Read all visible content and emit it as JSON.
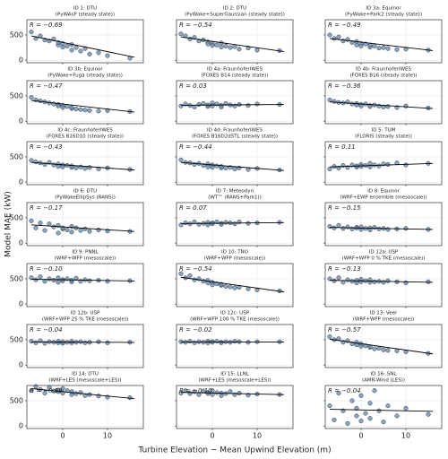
{
  "figure": {
    "xlabel": "Turbine Elevation − Mean Upwind Elevation (m)",
    "ylabel": "Model MAE (kW)",
    "xlim": [
      -8,
      18
    ],
    "ylim": [
      -50,
      800
    ],
    "xticks": [
      0,
      10
    ],
    "yticks": [
      0,
      500
    ],
    "grid": true,
    "x": [
      -7,
      -6,
      -5,
      -4,
      -3,
      -2,
      -1,
      -1,
      0,
      0,
      1,
      2,
      2,
      3,
      4,
      5,
      6,
      8,
      10,
      15
    ],
    "fit_x": [
      -7,
      16
    ],
    "color": "#6f8fb0"
  },
  "chart_data": [
    {
      "type": "scatter",
      "title": "ID 1: DTU",
      "subtitle": "(PyWAsP (steady state))",
      "annotation": "R = −0.69",
      "y": [
        560,
        430,
        480,
        400,
        380,
        420,
        300,
        350,
        260,
        330,
        280,
        200,
        310,
        250,
        180,
        230,
        120,
        150,
        90,
        40
      ],
      "fit": [
        480,
        60
      ]
    },
    {
      "type": "scatter",
      "title": "ID 2: DTU",
      "subtitle": "(PyWake+SuperGaussian (steady state))",
      "annotation": "R = −0.54",
      "y": [
        520,
        480,
        420,
        450,
        380,
        400,
        360,
        320,
        330,
        290,
        300,
        260,
        340,
        280,
        250,
        270,
        220,
        240,
        200,
        190
      ],
      "fit": [
        460,
        170
      ]
    },
    {
      "type": "scatter",
      "title": "ID 3a: Equinor",
      "subtitle": "(PyWake+Park2 (steady state))",
      "annotation": "R = −0.49",
      "y": [
        500,
        430,
        460,
        380,
        410,
        350,
        370,
        300,
        330,
        280,
        320,
        260,
        300,
        280,
        240,
        250,
        230,
        210,
        220,
        200
      ],
      "fit": [
        430,
        190
      ]
    },
    {
      "type": "scatter",
      "title": "ID 3b: Equinor",
      "subtitle": "(PyWake+Fuga (steady state))",
      "annotation": "R = −0.47",
      "y": [
        470,
        420,
        400,
        380,
        360,
        340,
        330,
        300,
        310,
        270,
        290,
        250,
        270,
        240,
        230,
        220,
        210,
        200,
        210,
        190
      ],
      "fit": [
        410,
        180
      ]
    },
    {
      "type": "scatter",
      "title": "ID 4a: FraunhoferIWES",
      "subtitle": "(FOXES B14 (steady state))",
      "annotation": "R = 0.03",
      "y": [
        300,
        340,
        310,
        280,
        330,
        350,
        290,
        320,
        360,
        300,
        340,
        310,
        280,
        350,
        320,
        300,
        330,
        310,
        340,
        330
      ],
      "fit": [
        315,
        330
      ]
    },
    {
      "type": "scatter",
      "title": "ID 4b: FraunhoferIWES",
      "subtitle": "(FOXES B16 (steady state))",
      "annotation": "R = −0.36",
      "y": [
        420,
        390,
        370,
        360,
        380,
        340,
        350,
        320,
        330,
        300,
        340,
        310,
        290,
        320,
        300,
        280,
        290,
        270,
        300,
        260
      ],
      "fit": [
        380,
        250
      ]
    },
    {
      "type": "scatter",
      "title": "ID 4c: FraunhoferIWES",
      "subtitle": "(FOXES B16D10 (steady state))",
      "annotation": "R = −0.43",
      "y": [
        430,
        400,
        380,
        350,
        390,
        340,
        360,
        310,
        340,
        300,
        330,
        290,
        320,
        280,
        300,
        270,
        290,
        260,
        280,
        250
      ],
      "fit": [
        390,
        240
      ]
    },
    {
      "type": "scatter",
      "title": "ID 4d: FraunhoferIWES",
      "subtitle": "(FOXES B16D2d5TL (steady state))",
      "annotation": "R = −0.44",
      "y": [
        440,
        390,
        380,
        350,
        370,
        330,
        360,
        300,
        340,
        290,
        320,
        280,
        310,
        280,
        290,
        260,
        280,
        250,
        270,
        240
      ],
      "fit": [
        390,
        230
      ]
    },
    {
      "type": "scatter",
      "title": "ID 5: TUM",
      "subtitle": "(FLORIS (steady state))",
      "annotation": "R = 0.11",
      "y": [
        260,
        310,
        280,
        330,
        290,
        340,
        300,
        320,
        350,
        310,
        330,
        300,
        370,
        340,
        320,
        360,
        350,
        380,
        340,
        370
      ],
      "fit": [
        300,
        370
      ]
    },
    {
      "type": "scatter",
      "title": "ID 6: DTU",
      "subtitle": "(PyWakeEllipSys (RANS))",
      "annotation": "R = −0.17",
      "y": [
        440,
        300,
        400,
        250,
        380,
        320,
        200,
        350,
        280,
        300,
        260,
        330,
        220,
        300,
        250,
        280,
        230,
        260,
        240,
        230
      ],
      "fit": [
        360,
        230
      ]
    },
    {
      "type": "scatter",
      "title": "ID 7: Meteodyn",
      "subtitle": "(WT™ (RANS+Park1))",
      "annotation": "R = 0.07",
      "y": [
        360,
        400,
        380,
        420,
        370,
        390,
        410,
        360,
        400,
        380,
        420,
        390,
        370,
        410,
        400,
        380,
        420,
        390,
        400,
        410
      ],
      "fit": [
        385,
        405
      ]
    },
    {
      "type": "scatter",
      "title": "ID 8: Equinor",
      "subtitle": "(WRF+EWP ensemble (mesoscale))",
      "annotation": "R = −0.15",
      "y": [
        330,
        300,
        350,
        290,
        320,
        280,
        310,
        300,
        270,
        320,
        290,
        300,
        260,
        310,
        280,
        290,
        270,
        280,
        290,
        270
      ],
      "fit": [
        310,
        270
      ]
    },
    {
      "type": "scatter",
      "title": "ID 9: PNNL",
      "subtitle": "(WRF+WFP (mesoscale))",
      "annotation": "R = −0.10",
      "y": [
        520,
        480,
        540,
        450,
        500,
        470,
        430,
        520,
        480,
        460,
        500,
        440,
        470,
        510,
        450,
        480,
        460,
        470,
        450,
        460
      ],
      "fit": [
        490,
        455
      ]
    },
    {
      "type": "scatter",
      "title": "ID 10: TNO",
      "subtitle": "(WRF+WFP (mesoscale))",
      "annotation": "R = −0.54",
      "y": [
        600,
        520,
        560,
        480,
        500,
        450,
        470,
        420,
        430,
        380,
        400,
        370,
        390,
        350,
        340,
        320,
        330,
        300,
        280,
        260
      ],
      "fit": [
        530,
        240
      ]
    },
    {
      "type": "scatter",
      "title": "ID 12a: USP",
      "subtitle": "(WRF+WFP 0 % TKE (mesoscale))",
      "annotation": "R = −0.13",
      "y": [
        500,
        460,
        520,
        430,
        480,
        450,
        470,
        420,
        490,
        440,
        460,
        430,
        480,
        440,
        450,
        430,
        460,
        440,
        420,
        440
      ],
      "fit": [
        470,
        430
      ]
    },
    {
      "type": "scatter",
      "title": "ID 12b: USP",
      "subtitle": "(WRF+WFP 25 % TKE (mesoscale))",
      "annotation": "R = −0.04",
      "y": [
        470,
        440,
        480,
        430,
        460,
        450,
        440,
        470,
        430,
        460,
        450,
        440,
        470,
        450,
        460,
        440,
        450,
        460,
        440,
        450
      ],
      "fit": [
        455,
        447
      ]
    },
    {
      "type": "scatter",
      "title": "ID 12c: USP",
      "subtitle": "(WRF+WFP 100 % TKE (mesoscale))",
      "annotation": "R = −0.02",
      "y": [
        460,
        450,
        470,
        440,
        460,
        450,
        470,
        440,
        460,
        450,
        470,
        450,
        440,
        460,
        450,
        470,
        460,
        450,
        460,
        460
      ],
      "fit": [
        456,
        454
      ]
    },
    {
      "type": "scatter",
      "title": "ID 13: Veer",
      "subtitle": "(WRF+WFP (mesoscale))",
      "annotation": "R = −0.57",
      "y": [
        560,
        500,
        520,
        450,
        480,
        420,
        450,
        400,
        420,
        370,
        380,
        350,
        360,
        320,
        330,
        300,
        290,
        280,
        260,
        230
      ],
      "fit": [
        510,
        220
      ]
    },
    {
      "type": "scatter",
      "title": "ID 14: DTU",
      "subtitle": "(WRF+LES (mesoscale+LES))",
      "annotation": "R = −0.59",
      "y": [
        700,
        780,
        720,
        650,
        760,
        690,
        710,
        680,
        740,
        650,
        700,
        620,
        680,
        640,
        660,
        600,
        620,
        590,
        570,
        560
      ],
      "fit": [
        740,
        540
      ]
    },
    {
      "type": "scatter",
      "title": "ID 15: LLNL",
      "subtitle": "(WRF+LES (mesoscale+LES))",
      "annotation": "R = −0.10",
      "y": [
        650,
        700,
        640,
        680,
        620,
        690,
        660,
        640,
        700,
        620,
        660,
        650,
        600,
        640,
        680,
        620,
        650,
        610,
        630,
        620
      ],
      "fit": [
        665,
        620
      ]
    },
    {
      "type": "scatter",
      "title": "ID 16: SNL",
      "subtitle": "(AMR-Wind (LES))",
      "annotation": "R = −0.04",
      "y": [
        400,
        120,
        650,
        300,
        50,
        500,
        200,
        350,
        100,
        600,
        250,
        450,
        150,
        700,
        300,
        80,
        400,
        200,
        350,
        230
      ],
      "fit": [
        330,
        290
      ]
    }
  ]
}
